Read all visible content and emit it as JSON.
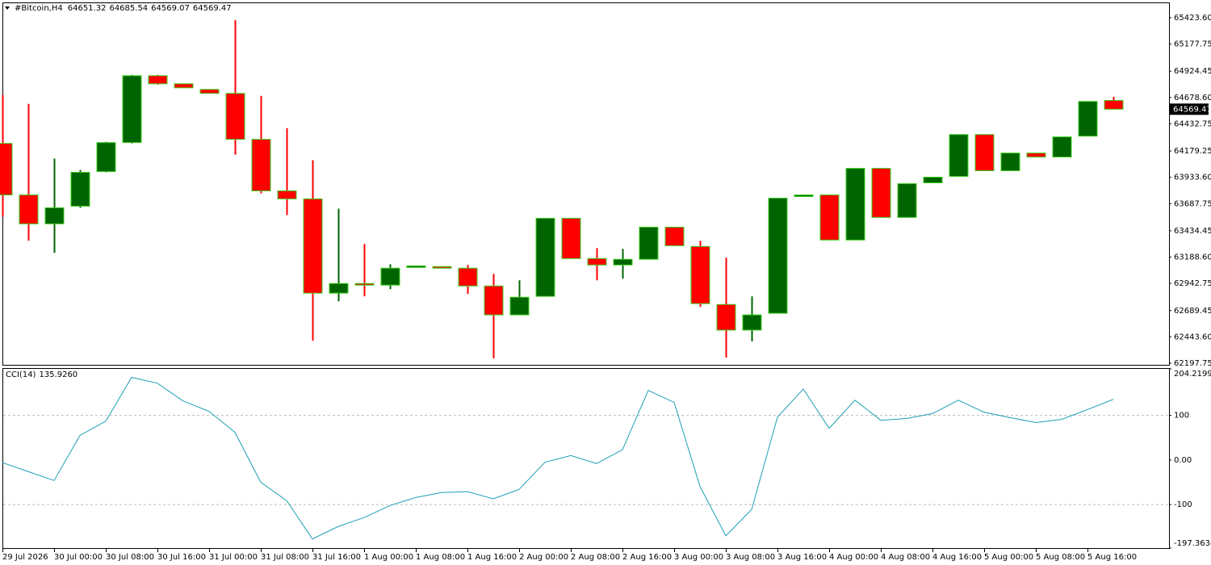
{
  "chart_data": [
    {
      "type": "candlestick",
      "symbol": "#Bitcoin,H4",
      "categories": [
        "29 Jul 2026",
        null,
        "30 Jul 00:00",
        null,
        "30 Jul 08:00",
        null,
        "30 Jul 16:00",
        null,
        "31 Jul 00:00",
        null,
        "31 Jul 08:00",
        null,
        "31 Jul 16:00",
        null,
        "1 Aug 00:00",
        null,
        "1 Aug 08:00",
        null,
        "1 Aug 16:00",
        null,
        "2 Aug 00:00",
        null,
        "2 Aug 08:00",
        null,
        "2 Aug 16:00",
        null,
        "3 Aug 00:00",
        null,
        "3 Aug 08:00",
        null,
        "3 Aug 16:00",
        null,
        "4 Aug 00:00",
        null,
        "4 Aug 08:00",
        null,
        "4 Aug 16:00",
        null,
        "5 Aug 00:00",
        null,
        "5 Aug 08:00",
        null,
        "5 Aug 16:00",
        null
      ],
      "open": [
        64250,
        63769,
        63499,
        63664,
        63987,
        64258,
        64882,
        64807,
        64754,
        64717,
        64288,
        63807,
        63732,
        62852,
        62942,
        62927,
        63100,
        63100,
        63085,
        62919,
        62649,
        62822,
        63551,
        63175,
        63115,
        63168,
        63468,
        63288,
        62746,
        62507,
        62664,
        63754,
        63769,
        63348,
        64017,
        63559,
        63882,
        63942,
        64333,
        63995,
        64160,
        64123,
        64318,
        64651.32
      ],
      "high": [
        64702,
        64619,
        64108,
        64002,
        64265,
        64890,
        64890,
        64807,
        64754,
        65401,
        64694,
        64393,
        64093,
        63641,
        63311,
        63122,
        63107,
        63100,
        63115,
        63032,
        62972,
        63551,
        63551,
        63273,
        63265,
        63468,
        63468,
        63341,
        63183,
        62822,
        63739,
        63769,
        63769,
        64017,
        64017,
        63874,
        63935,
        64333,
        64333,
        64160,
        64160,
        64311,
        64642,
        64685.54
      ],
      "low": [
        63566,
        63341,
        63228,
        63649,
        63980,
        64250,
        64799,
        64769,
        64717,
        64145,
        63784,
        63581,
        62409,
        62776,
        62822,
        62889,
        63100,
        63085,
        62844,
        62244,
        62649,
        62822,
        63175,
        62972,
        62987,
        63168,
        63295,
        62724,
        62251,
        62401,
        62664,
        63754,
        63348,
        63348,
        63559,
        63559,
        63882,
        63942,
        63995,
        63995,
        64123,
        64123,
        64318,
        64569.07
      ],
      "close": [
        63769,
        63499,
        63649,
        63980,
        64258,
        64882,
        64807,
        64769,
        64717,
        64288,
        63807,
        63732,
        62852,
        62942,
        62927,
        63085,
        63107,
        63085,
        62919,
        62649,
        62814,
        63551,
        63175,
        63115,
        63168,
        63468,
        63295,
        62754,
        62507,
        62649,
        63739,
        63769,
        63348,
        64017,
        63559,
        63874,
        63935,
        64333,
        63995,
        64160,
        64123,
        64311,
        64642,
        64569.47
      ],
      "up_color": "#006400",
      "down_color": "#ff0000",
      "outline_color": "#3ccf1c",
      "ylim": [
        62182.71,
        65558.95
      ],
      "yticks": [
        {
          "value": 65423.6,
          "label": "65423.60"
        },
        {
          "value": 65177.75,
          "label": "65177.75"
        },
        {
          "value": 64924.45,
          "label": "64924.45"
        },
        {
          "value": 64678.6,
          "label": "64678.60"
        },
        {
          "value": 64432.75,
          "label": "64432.75"
        },
        {
          "value": 64179.25,
          "label": "64179.25"
        },
        {
          "value": 63933.6,
          "label": "63933.60"
        },
        {
          "value": 63687.75,
          "label": "63687.75"
        },
        {
          "value": 63434.45,
          "label": "63434.45"
        },
        {
          "value": 63188.6,
          "label": "63188.60"
        },
        {
          "value": 62942.75,
          "label": "62942.75"
        },
        {
          "value": 62689.45,
          "label": "62689.45"
        },
        {
          "value": 62443.6,
          "label": "62443.60"
        },
        {
          "value": 62197.75,
          "label": "62197.75"
        }
      ]
    },
    {
      "type": "line",
      "title": "CCI(14)",
      "color": "#1e9fb4",
      "values": [
        -6,
        -26,
        -46,
        55,
        87,
        185,
        172,
        132,
        109,
        62,
        -50,
        -91,
        -177,
        -149,
        -129,
        -102,
        -84,
        -73,
        -71,
        -87,
        -66,
        -5,
        10,
        -8,
        23,
        156,
        129,
        -59,
        -170,
        -111,
        96,
        159,
        71,
        134,
        89,
        93,
        104,
        134,
        107,
        95,
        84,
        91,
        113,
        135.926
      ],
      "value_labels": [
        null,
        null,
        null,
        null,
        null,
        null,
        null,
        null,
        null,
        null,
        null,
        null,
        null,
        null,
        null,
        null,
        null,
        null,
        null,
        null,
        null,
        null,
        null,
        null,
        null,
        null,
        null,
        null,
        null,
        null,
        null,
        null,
        null,
        null,
        null,
        null,
        null,
        null,
        null,
        null,
        null,
        null,
        null,
        "135.9260"
      ],
      "ylim": [
        -197.3634,
        204.2199
      ],
      "yticks": [
        204.2199,
        100,
        {
          "value": 0,
          "label": "0.00"
        },
        -100,
        -197.3634
      ],
      "levels": [
        100,
        -100
      ]
    }
  ]
}
